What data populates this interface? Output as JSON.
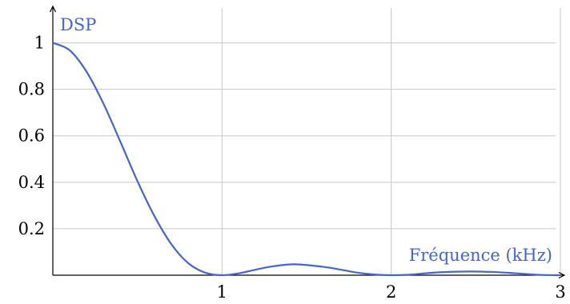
{
  "chart_data": {
    "type": "line",
    "xlabel": "Fréquence (kHz)",
    "ylabel": "DSP",
    "xlim": [
      0,
      3
    ],
    "ylim": [
      0,
      1.15
    ],
    "x_ticks": [
      1,
      2,
      3
    ],
    "x_tick_labels": [
      "1",
      "2",
      "3"
    ],
    "y_ticks": [
      0.2,
      0.4,
      0.6,
      0.8,
      1
    ],
    "y_tick_labels": [
      "0.2",
      "0.4",
      "0.6",
      "0.8",
      "1"
    ],
    "grid": true,
    "line_color": "#4466cc",
    "series": [
      {
        "x": [
          0,
          0.1,
          0.2,
          0.3,
          0.4,
          0.5,
          0.6,
          0.7,
          0.8,
          0.9,
          1.0,
          1.1,
          1.2,
          1.3,
          1.43,
          1.6,
          1.7,
          1.8,
          1.9,
          2.0,
          2.1,
          2.2,
          2.3,
          2.46,
          2.6,
          2.7,
          2.8,
          2.9,
          3.0
        ],
        "y": [
          1.0,
          0.968,
          0.875,
          0.737,
          0.573,
          0.405,
          0.255,
          0.134,
          0.052,
          0.011,
          0.0,
          0.008,
          0.024,
          0.038,
          0.047,
          0.036,
          0.024,
          0.011,
          0.003,
          0.0,
          0.002,
          0.008,
          0.013,
          0.016,
          0.014,
          0.01,
          0.005,
          0.001,
          0.0
        ]
      }
    ]
  }
}
